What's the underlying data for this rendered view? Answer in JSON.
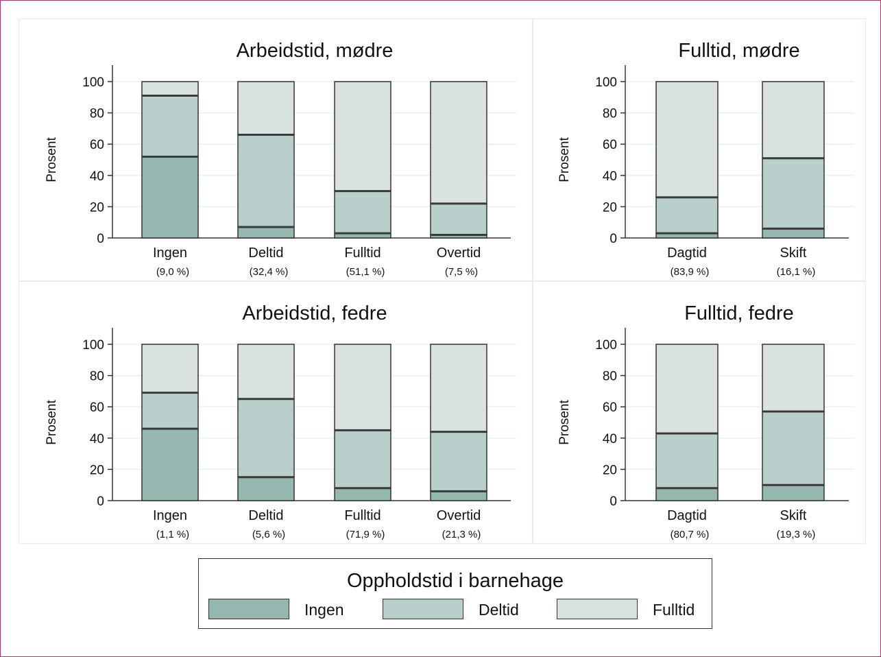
{
  "legend": {
    "title": "Oppholdstid i barnehage",
    "items": [
      {
        "label": "Ingen",
        "color": "#94b7b0"
      },
      {
        "label": "Deltid",
        "color": "#b8cfcb"
      },
      {
        "label": "Fulltid",
        "color": "#d8e3e1"
      }
    ]
  },
  "chart_data": [
    {
      "type": "bar",
      "stacked": true,
      "title": "Arbeidstid, mødre",
      "ylabel": "Prosent",
      "ylim": [
        0,
        100
      ],
      "yticks": [
        0,
        20,
        40,
        60,
        80,
        100
      ],
      "categories": [
        "Ingen",
        "Deltid",
        "Fulltid",
        "Overtid"
      ],
      "sublabels": [
        "(9,0 %)",
        "(32,4 %)",
        "(51,1 %)",
        "(7,5 %)"
      ],
      "series": [
        {
          "name": "Ingen",
          "values": [
            52,
            7,
            3,
            2
          ]
        },
        {
          "name": "Deltid",
          "values": [
            39,
            59,
            27,
            20
          ]
        },
        {
          "name": "Fulltid",
          "values": [
            9,
            34,
            70,
            78
          ]
        }
      ]
    },
    {
      "type": "bar",
      "stacked": true,
      "title": "Fulltid, mødre",
      "ylabel": "Prosent",
      "ylim": [
        0,
        100
      ],
      "yticks": [
        0,
        20,
        40,
        60,
        80,
        100
      ],
      "categories": [
        "Dagtid",
        "Skift"
      ],
      "sublabels": [
        "(83,9 %)",
        "(16,1 %)"
      ],
      "series": [
        {
          "name": "Ingen",
          "values": [
            3,
            6
          ]
        },
        {
          "name": "Deltid",
          "values": [
            23,
            45
          ]
        },
        {
          "name": "Fulltid",
          "values": [
            74,
            49
          ]
        }
      ]
    },
    {
      "type": "bar",
      "stacked": true,
      "title": "Arbeidstid, fedre",
      "ylabel": "Prosent",
      "ylim": [
        0,
        100
      ],
      "yticks": [
        0,
        20,
        40,
        60,
        80,
        100
      ],
      "categories": [
        "Ingen",
        "Deltid",
        "Fulltid",
        "Overtid"
      ],
      "sublabels": [
        "(1,1 %)",
        "(5,6 %)",
        "(71,9 %)",
        "(21,3 %)"
      ],
      "series": [
        {
          "name": "Ingen",
          "values": [
            46,
            15,
            8,
            6
          ]
        },
        {
          "name": "Deltid",
          "values": [
            23,
            50,
            37,
            38
          ]
        },
        {
          "name": "Fulltid",
          "values": [
            31,
            35,
            55,
            56
          ]
        }
      ]
    },
    {
      "type": "bar",
      "stacked": true,
      "title": "Fulltid, fedre",
      "ylabel": "Prosent",
      "ylim": [
        0,
        100
      ],
      "yticks": [
        0,
        20,
        40,
        60,
        80,
        100
      ],
      "categories": [
        "Dagtid",
        "Skift"
      ],
      "sublabels": [
        "(80,7 %)",
        "(19,3 %)"
      ],
      "series": [
        {
          "name": "Ingen",
          "values": [
            8,
            10
          ]
        },
        {
          "name": "Deltid",
          "values": [
            35,
            47
          ]
        },
        {
          "name": "Fulltid",
          "values": [
            57,
            43
          ]
        }
      ]
    }
  ]
}
